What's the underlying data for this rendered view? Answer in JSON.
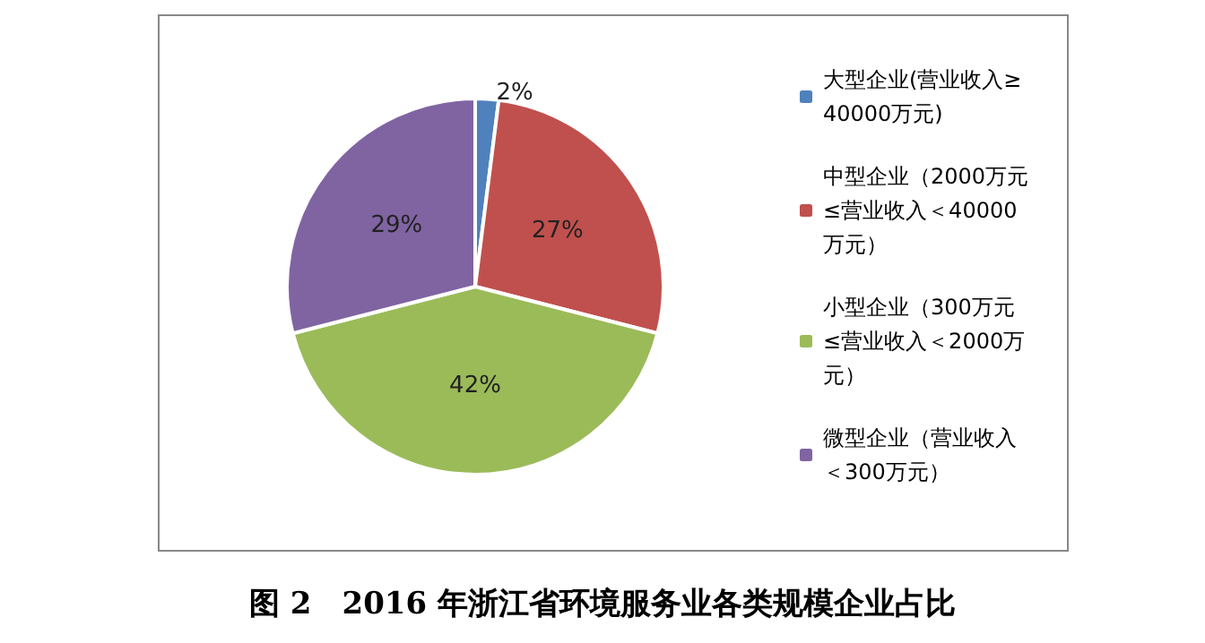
{
  "chart_data": {
    "type": "pie",
    "title": "图 2　2016 年浙江省环境服务业各类规模企业占比",
    "categories": [
      "大型企业(营业收入≥40000万元)",
      "中型企业（2000万元≤营业收入＜40000万元）",
      "小型企业（300万元≤营业收入＜2000万元）",
      "微型企业（营业收入＜300万元）"
    ],
    "values": [
      2,
      27,
      42,
      29
    ],
    "value_labels": [
      "2%",
      "27%",
      "42%",
      "29%"
    ],
    "colors": [
      "#4f81bd",
      "#c0504d",
      "#9bbb59",
      "#8064a2"
    ],
    "legend": "right"
  }
}
